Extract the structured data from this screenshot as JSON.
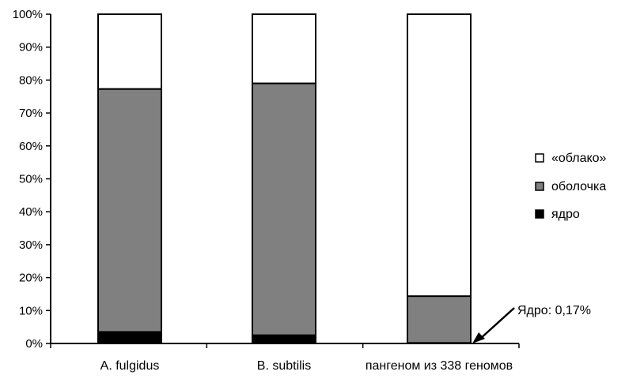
{
  "chart_data": {
    "type": "bar",
    "stacked": true,
    "percent": true,
    "categories": [
      "A. fulgidus",
      "B. subtilis",
      "пангеном из 338 геномов"
    ],
    "series": [
      {
        "name": "ядро",
        "color": "#000000",
        "values": [
          3.5,
          2.5,
          0.17
        ]
      },
      {
        "name": "оболочка",
        "color": "#808080",
        "values": [
          73.8,
          76.5,
          14.2
        ]
      },
      {
        "name": "«облако»",
        "color": "#ffffff",
        "values": [
          22.7,
          21.0,
          85.63
        ]
      }
    ],
    "y_ticks": [
      "0%",
      "10%",
      "20%",
      "30%",
      "40%",
      "50%",
      "60%",
      "70%",
      "80%",
      "90%",
      "100%"
    ],
    "ylim": [
      0,
      100
    ],
    "legend_order": [
      "«облако»",
      "оболочка",
      "ядро"
    ],
    "legend_position": "right",
    "annotation": {
      "text": "Ядро: 0,17%",
      "category_index": 2
    }
  }
}
